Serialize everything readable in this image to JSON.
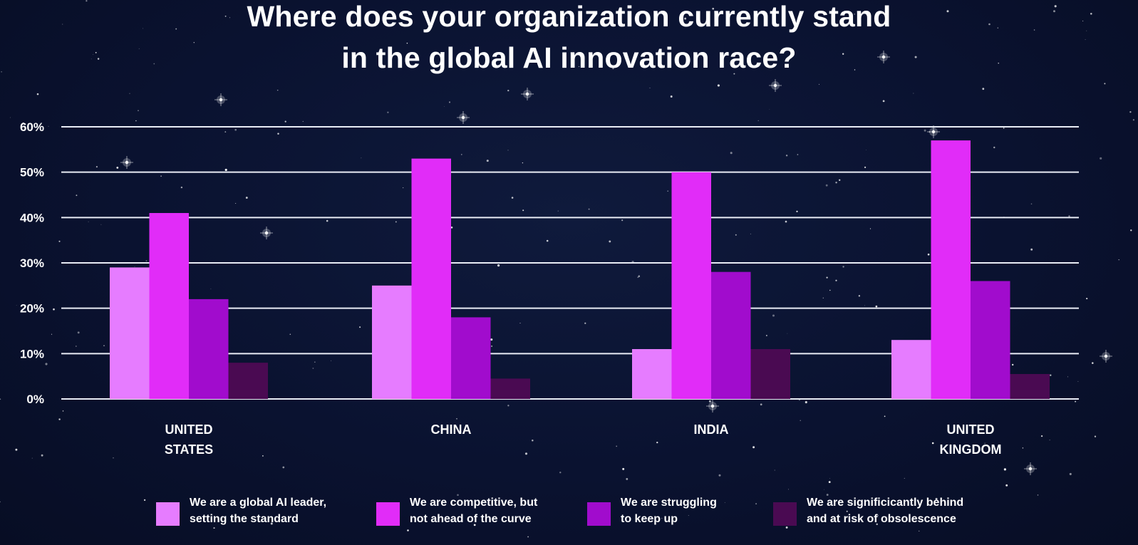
{
  "title": {
    "line1": "Where does your organization currently stand",
    "line2": "in the global AI innovation race?"
  },
  "colors": {
    "background": "#0a1230",
    "grid": "#e9ecf5",
    "series": [
      "#e67cff",
      "#e12cf8",
      "#a10ccd",
      "#4a0a52"
    ]
  },
  "legend_placement": "bottom",
  "chart_data": {
    "type": "bar",
    "title": "Where does your organization currently stand in the global AI innovation race?",
    "xlabel": "",
    "ylabel": "",
    "ylim": [
      0,
      60
    ],
    "y_ticks": [
      "0%",
      "10%",
      "20%",
      "30%",
      "40%",
      "50%",
      "60%"
    ],
    "grid": true,
    "categories": [
      [
        "UNITED",
        "STATES"
      ],
      [
        "CHINA"
      ],
      [
        "INDIA"
      ],
      [
        "UNITED",
        "KINGDOM"
      ]
    ],
    "series": [
      {
        "name": "We are a global AI leader, setting the standard",
        "label_lines": [
          "We are a global AI leader,",
          "setting the standard"
        ],
        "values": [
          29,
          25,
          11,
          13
        ]
      },
      {
        "name": "We are competitive, but not ahead of the curve",
        "label_lines": [
          "We are competitive, but",
          "not ahead of the curve"
        ],
        "values": [
          41,
          53,
          50,
          57
        ]
      },
      {
        "name": "We are struggling to keep up",
        "label_lines": [
          "We are struggling",
          "to keep up"
        ],
        "values": [
          22,
          18,
          28,
          26
        ]
      },
      {
        "name": "We are significicantly behind and at risk of obsolescence",
        "label_lines": [
          "We are significicantly behind",
          "and at risk of obsolescence"
        ],
        "values": [
          8,
          4.5,
          11,
          5.5
        ]
      }
    ]
  }
}
